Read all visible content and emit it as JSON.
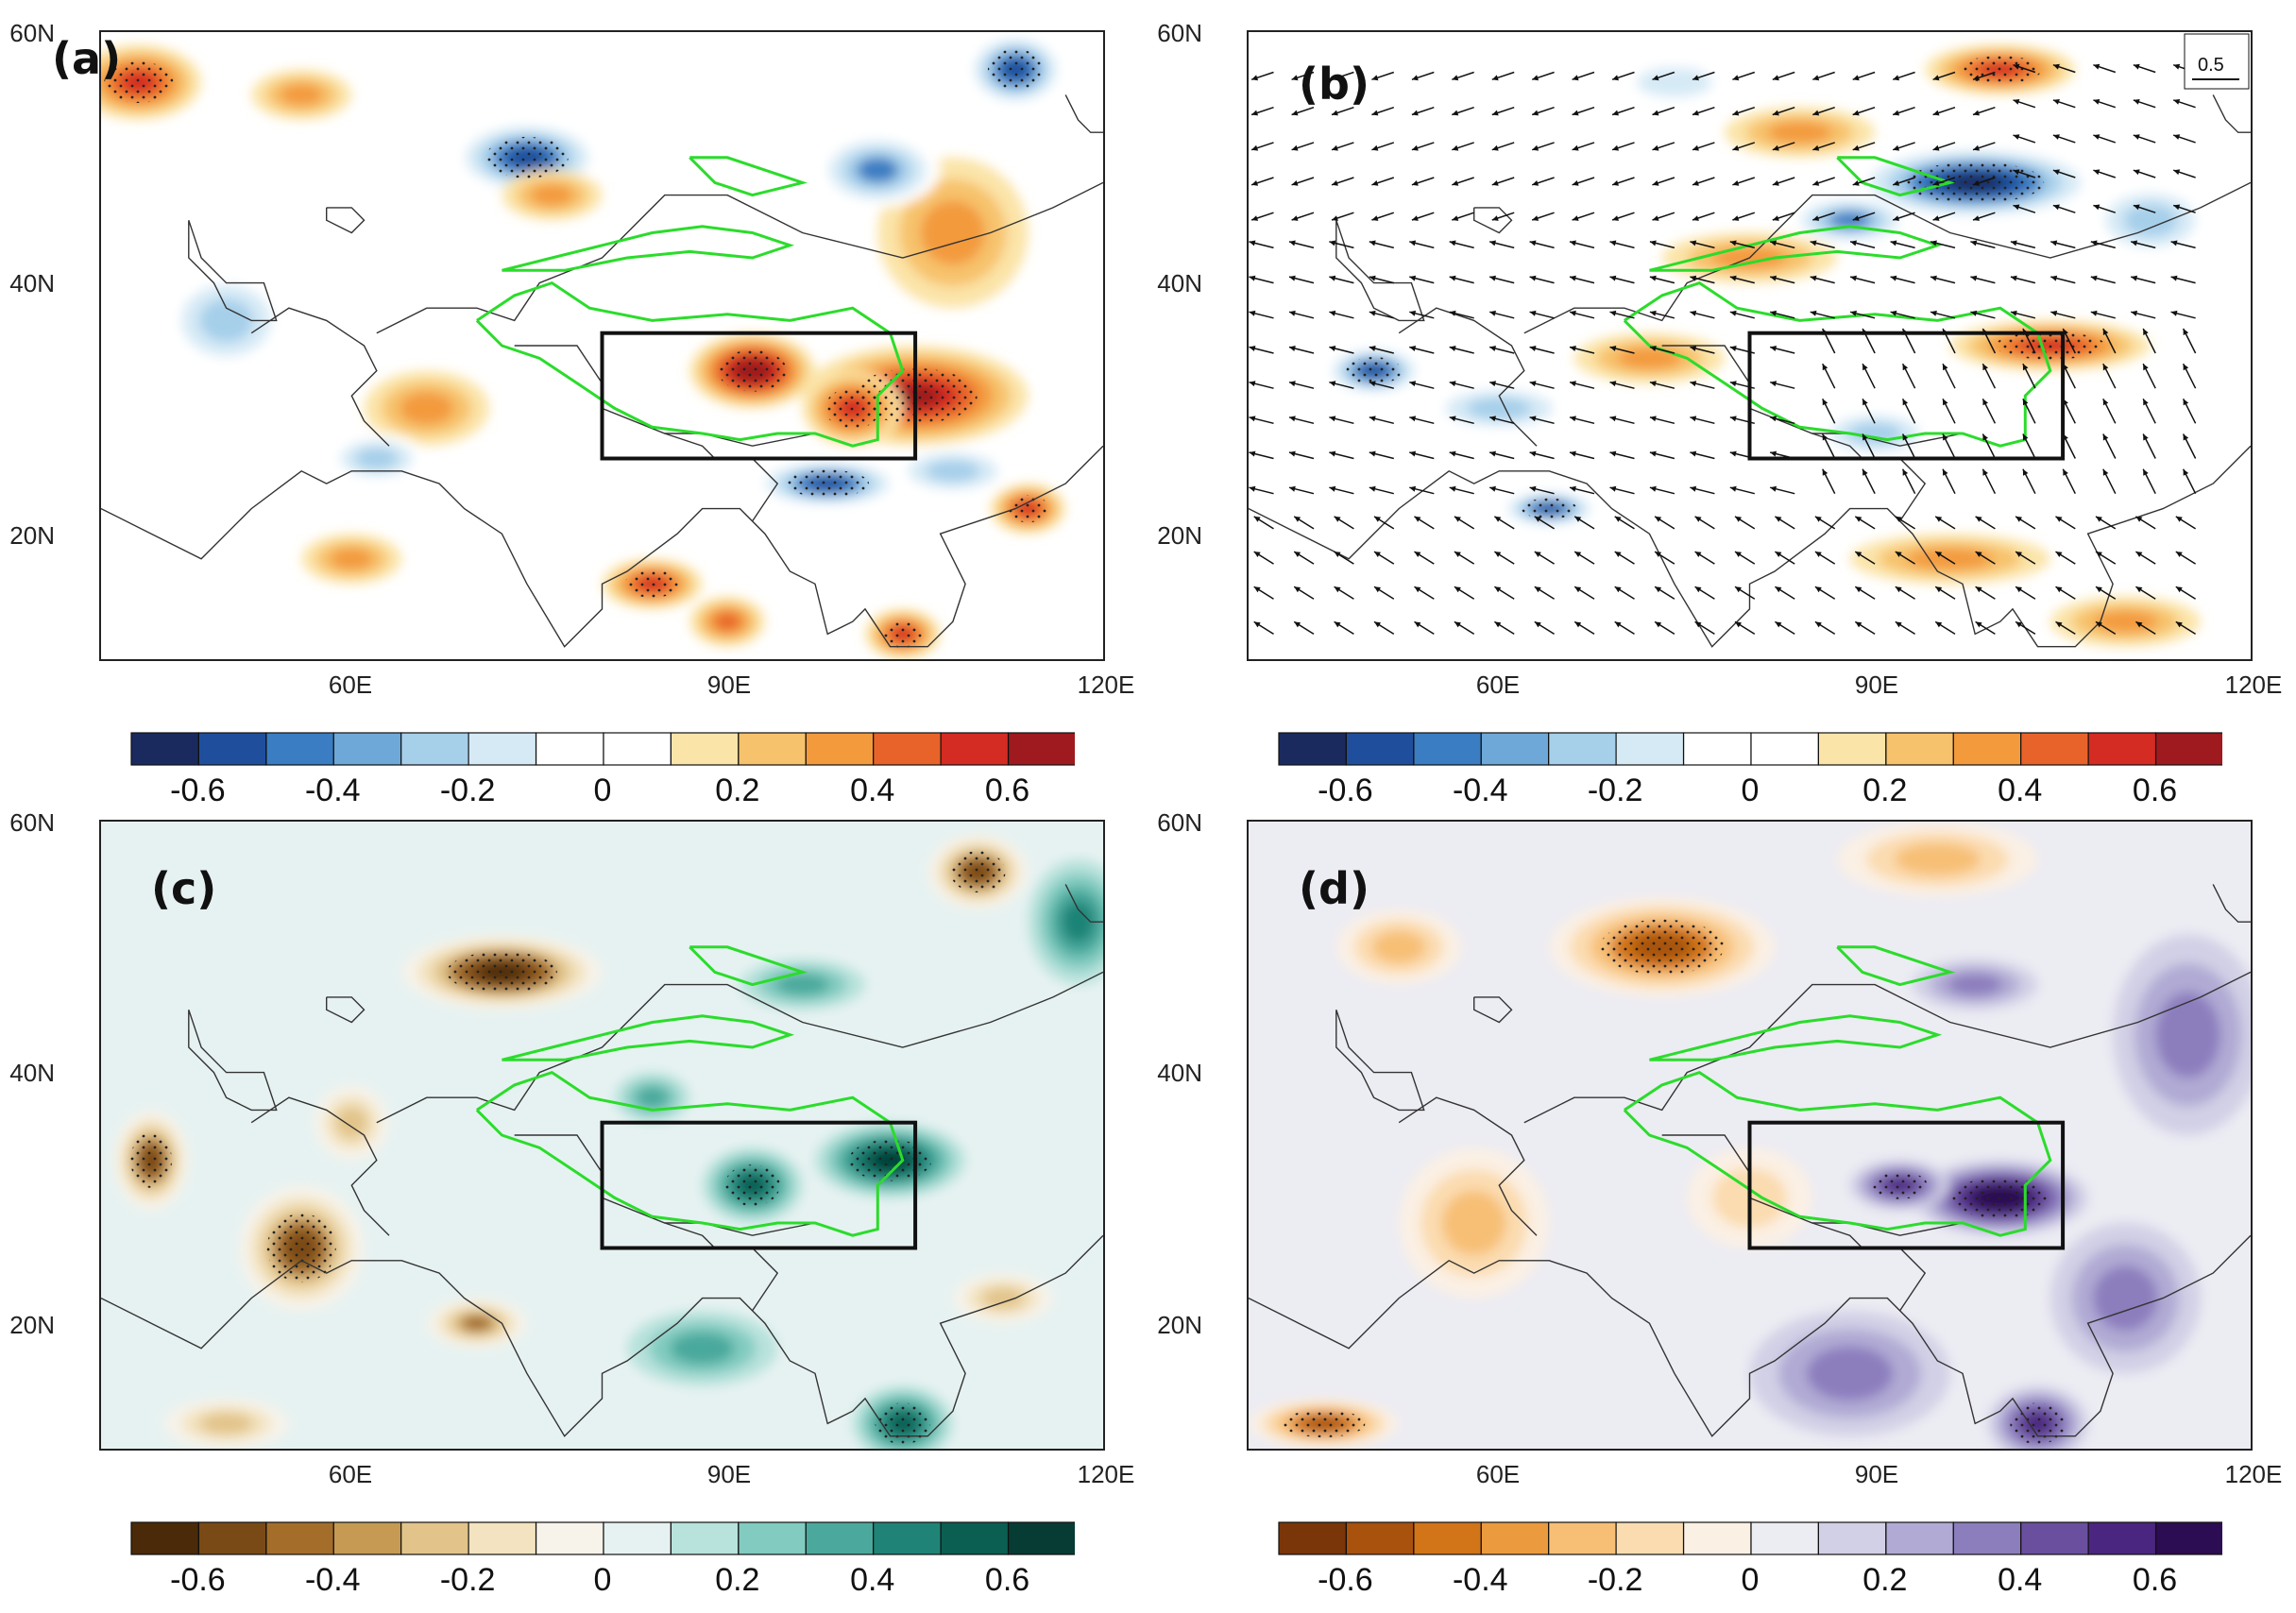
{
  "panels": [
    {
      "id": "a",
      "label": "(a)",
      "palette": "redblue",
      "vectors": false
    },
    {
      "id": "b",
      "label": "(b)",
      "palette": "redblue",
      "vectors": true
    },
    {
      "id": "c",
      "label": "(c)",
      "palette": "browngreen",
      "vectors": false
    },
    {
      "id": "d",
      "label": "(d)",
      "palette": "orangepurple",
      "vectors": false
    }
  ],
  "axes": {
    "lat_labels": [
      "60N",
      "40N",
      "20N"
    ],
    "lat_values": [
      60,
      40,
      20
    ],
    "lon_labels": [
      "60E",
      "90E",
      "120E"
    ],
    "lon_values": [
      60,
      90,
      120
    ],
    "lon_range": [
      40,
      120
    ],
    "lat_range": [
      10,
      60
    ]
  },
  "colorbar": {
    "ticks": [
      "-0.6",
      "-0.4",
      "-0.2",
      "0",
      "0.2",
      "0.4",
      "0.6"
    ],
    "tick_values": [
      -0.6,
      -0.4,
      -0.2,
      0,
      0.2,
      0.4,
      0.6
    ],
    "range": [
      -0.7,
      0.7
    ],
    "levels": 14
  },
  "palettes": {
    "redblue": [
      "#1a2a5e",
      "#1f4f9c",
      "#3a7dc2",
      "#6ea8d8",
      "#a6cfea",
      "#d6eaf6",
      "#ffffff",
      "#ffffff",
      "#fbe4a8",
      "#f7c26c",
      "#f39a3d",
      "#e8632a",
      "#d42b22",
      "#9e1a1e"
    ],
    "browngreen": [
      "#4a2a08",
      "#7a4a16",
      "#a46e2a",
      "#c69a52",
      "#e2c48a",
      "#f3e3c0",
      "#f7f3ea",
      "#e6f2f1",
      "#b8e2dc",
      "#82cbc0",
      "#4aa99c",
      "#1f8477",
      "#0b5e52",
      "#063c34"
    ],
    "orangepurple": [
      "#7a3608",
      "#a8520e",
      "#d27418",
      "#ec9a3e",
      "#f7bf76",
      "#fbdcb0",
      "#fbf0e4",
      "#ececf3",
      "#d2d0e6",
      "#b0aad4",
      "#8c7dbd",
      "#6a4f9f",
      "#4b2680",
      "#2c0c52"
    ]
  },
  "box_region": {
    "lon": [
      80,
      105
    ],
    "lat": [
      26,
      36
    ]
  },
  "vector_reference": {
    "label": "0.5"
  },
  "colors": {
    "outline": "#2bdc2b",
    "box": "#111111"
  }
}
